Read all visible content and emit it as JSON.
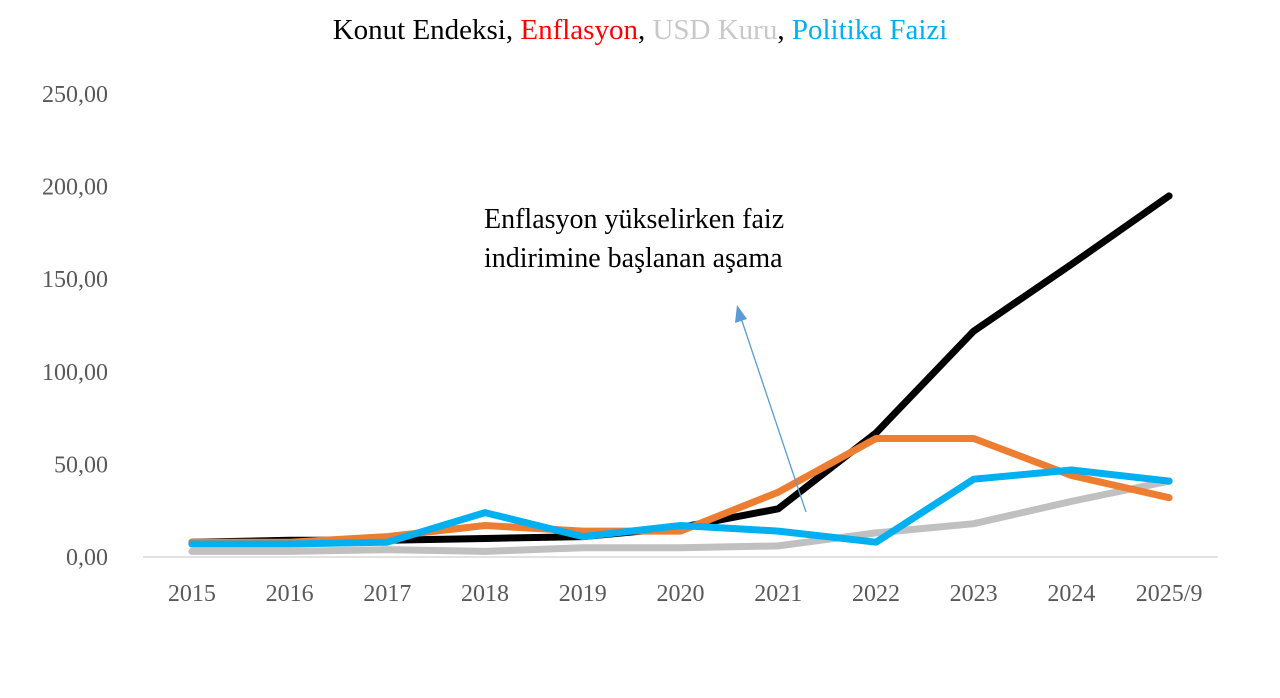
{
  "chart_data": {
    "type": "line",
    "title_parts": [
      {
        "text": "Konut Endeksi",
        "color": "#000000"
      },
      {
        "text": ", ",
        "color": "#000000"
      },
      {
        "text": "Enflasyon",
        "color": "#ff0000"
      },
      {
        "text": ", ",
        "color": "#000000"
      },
      {
        "text": "USD Kuru",
        "color": "#c8c8c8"
      },
      {
        "text": ", ",
        "color": "#000000"
      },
      {
        "text": "Politika Faizi",
        "color": "#00b0f0"
      }
    ],
    "categories": [
      "2015",
      "2016",
      "2017",
      "2018",
      "2019",
      "2020",
      "2021",
      "2022",
      "2023",
      "2024",
      "2025/9"
    ],
    "yticks": [
      "0,00",
      "50,00",
      "100,00",
      "150,00",
      "200,00",
      "250,00"
    ],
    "ylim": [
      0,
      250
    ],
    "grid": false,
    "series": [
      {
        "name": "Konut Endeksi",
        "color": "#000000",
        "values": [
          8,
          9,
          9,
          10,
          11,
          16,
          26,
          67,
          122,
          158,
          195
        ]
      },
      {
        "name": "USD Kuru",
        "color": "#c0c0c0",
        "values": [
          3,
          3,
          4,
          3,
          5,
          5,
          6,
          13,
          18,
          30,
          41
        ]
      },
      {
        "name": "Enflasyon",
        "color": "#ed7d31",
        "values": [
          8,
          8,
          11,
          17,
          14,
          14,
          35,
          64,
          64,
          44,
          32
        ]
      },
      {
        "name": "Politika Faizi",
        "color": "#00b0f0",
        "values": [
          7,
          7,
          8,
          24,
          11,
          17,
          14,
          8,
          42,
          47,
          41
        ]
      }
    ],
    "annotation": {
      "lines": [
        "Enflasyon yükselirken faiz",
        "indirimine başlanan aşama"
      ],
      "arrow_color": "#5b9bd5"
    }
  }
}
